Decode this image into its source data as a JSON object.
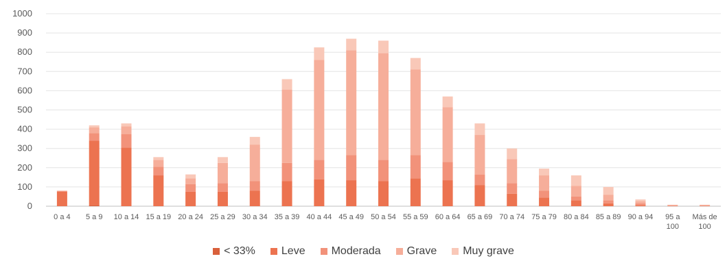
{
  "chart_data": {
    "type": "bar",
    "stacked": true,
    "title": "",
    "xlabel": "",
    "ylabel": "",
    "ylim": [
      0,
      1000
    ],
    "yticks": [
      0,
      100,
      200,
      300,
      400,
      500,
      600,
      700,
      800,
      900,
      1000
    ],
    "grid": true,
    "legend_position": "bottom",
    "categories": [
      [
        "0 a 4"
      ],
      [
        "5 a 9"
      ],
      [
        "10 a 14"
      ],
      [
        "15 a 19"
      ],
      [
        "20 a 24"
      ],
      [
        "25 a 29"
      ],
      [
        "30 a 34"
      ],
      [
        "35 a 39"
      ],
      [
        "40 a 44"
      ],
      [
        "45 a 49"
      ],
      [
        "50 a 54"
      ],
      [
        "55 a 59"
      ],
      [
        "60 a 64"
      ],
      [
        "65 a 69"
      ],
      [
        "70 a 74"
      ],
      [
        "75 a 79"
      ],
      [
        "80 a 84"
      ],
      [
        "85 a 89"
      ],
      [
        "90 a 94"
      ],
      [
        "95 a",
        "100"
      ],
      [
        "Más de",
        "100"
      ]
    ],
    "series": [
      {
        "name": "< 33%",
        "color": "#d9603b",
        "values": [
          0,
          5,
          0,
          0,
          0,
          0,
          0,
          0,
          0,
          0,
          0,
          0,
          0,
          0,
          0,
          0,
          0,
          0,
          0,
          0,
          0
        ]
      },
      {
        "name": "Leve",
        "color": "#ec7350",
        "values": [
          75,
          335,
          305,
          160,
          75,
          75,
          80,
          130,
          140,
          135,
          130,
          145,
          135,
          110,
          65,
          45,
          30,
          15,
          5,
          2,
          2
        ]
      },
      {
        "name": "Moderada",
        "color": "#f2927a",
        "values": [
          5,
          40,
          70,
          45,
          40,
          45,
          50,
          95,
          100,
          130,
          110,
          120,
          95,
          55,
          55,
          35,
          20,
          15,
          10,
          2,
          2
        ]
      },
      {
        "name": "Grave",
        "color": "#f6ae9a",
        "values": [
          0,
          30,
          40,
          35,
          30,
          105,
          190,
          380,
          520,
          545,
          555,
          445,
          285,
          205,
          125,
          80,
          55,
          30,
          10,
          2,
          2
        ]
      },
      {
        "name": "Muy grave",
        "color": "#f9c8b8",
        "values": [
          0,
          10,
          15,
          15,
          20,
          30,
          40,
          55,
          65,
          60,
          65,
          60,
          55,
          60,
          55,
          35,
          55,
          40,
          10,
          2,
          2
        ]
      }
    ]
  }
}
